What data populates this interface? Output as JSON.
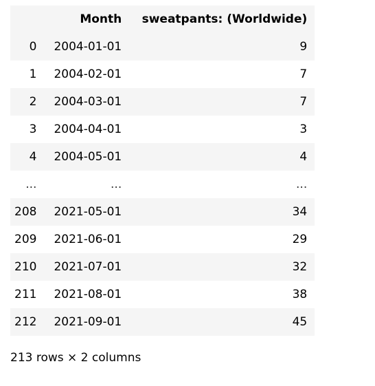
{
  "table": {
    "columns": {
      "index": "",
      "month": "Month",
      "value": "sweatpants: (Worldwide)"
    },
    "rows": [
      {
        "index": "0",
        "month": "2004-01-01",
        "value": "9"
      },
      {
        "index": "1",
        "month": "2004-02-01",
        "value": "7"
      },
      {
        "index": "2",
        "month": "2004-03-01",
        "value": "7"
      },
      {
        "index": "3",
        "month": "2004-04-01",
        "value": "3"
      },
      {
        "index": "4",
        "month": "2004-05-01",
        "value": "4"
      },
      {
        "index": "...",
        "month": "...",
        "value": "..."
      },
      {
        "index": "208",
        "month": "2021-05-01",
        "value": "34"
      },
      {
        "index": "209",
        "month": "2021-06-01",
        "value": "29"
      },
      {
        "index": "210",
        "month": "2021-07-01",
        "value": "32"
      },
      {
        "index": "211",
        "month": "2021-08-01",
        "value": "38"
      },
      {
        "index": "212",
        "month": "2021-09-01",
        "value": "45"
      }
    ]
  },
  "footer": "213 rows × 2 columns"
}
